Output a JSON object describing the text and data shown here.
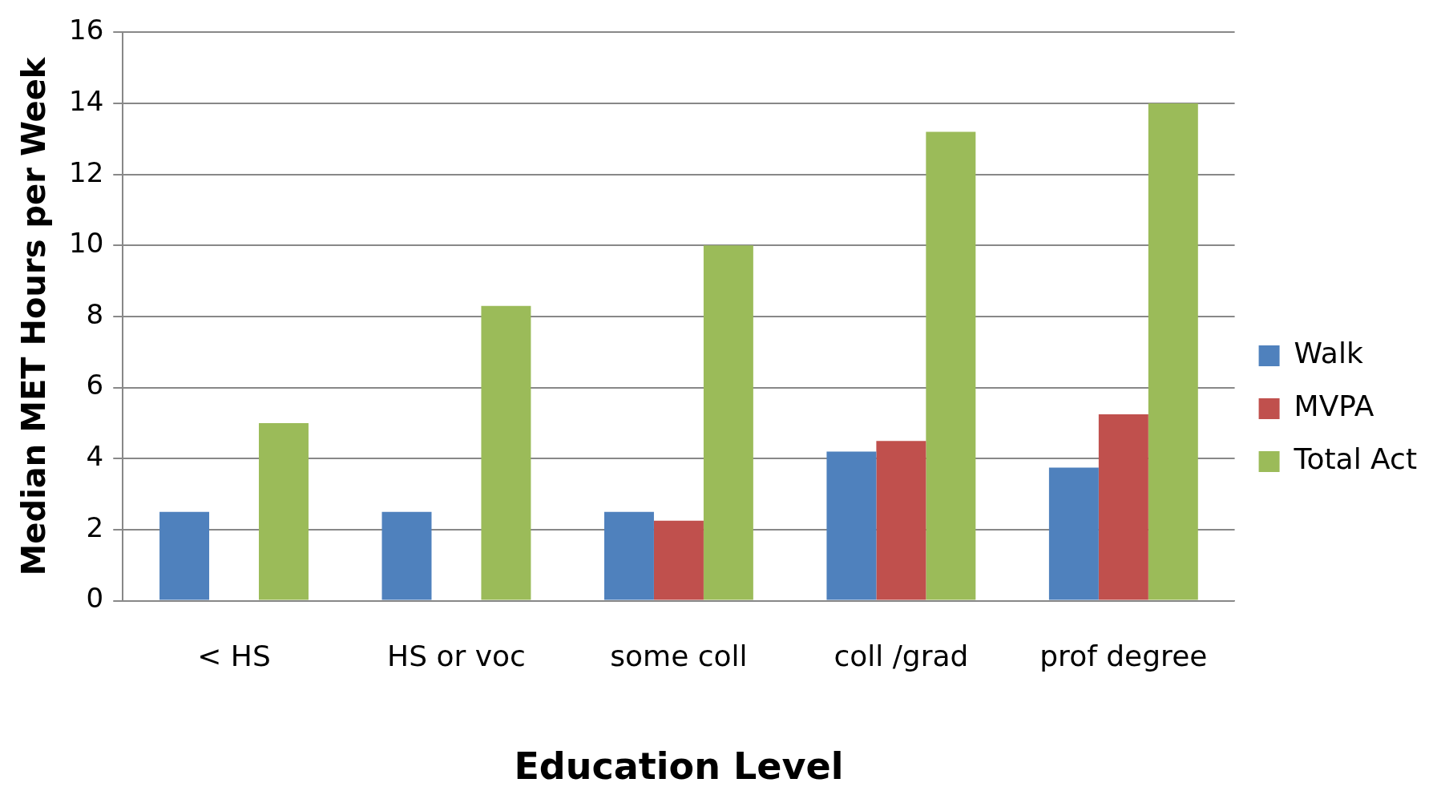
{
  "chart_data": {
    "type": "bar",
    "xlabel": "Education Level",
    "ylabel": "Median MET Hours per Week",
    "categories": [
      "< HS",
      "HS or voc",
      "some coll",
      "coll /grad",
      "prof degree"
    ],
    "series": [
      {
        "name": "Walk",
        "color": "#4f81bd",
        "values": [
          2.5,
          2.5,
          2.5,
          4.2,
          3.75
        ]
      },
      {
        "name": "MVPA",
        "color": "#c0504d",
        "values": [
          0,
          0,
          2.25,
          4.5,
          5.25
        ]
      },
      {
        "name": "Total Act",
        "color": "#9bbb59",
        "values": [
          5,
          8.3,
          10,
          13.2,
          14
        ]
      }
    ],
    "ylim": [
      0,
      16
    ],
    "yticks": [
      0,
      2,
      4,
      6,
      8,
      10,
      12,
      14,
      16
    ],
    "grid": "y",
    "legend": "right"
  }
}
